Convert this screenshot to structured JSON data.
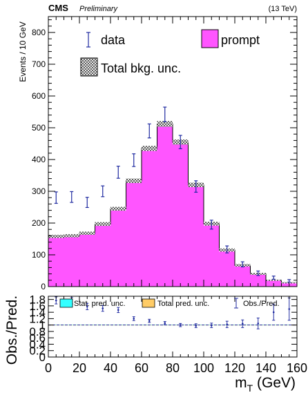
{
  "header": {
    "experiment": "CMS",
    "status": "Preliminary",
    "energy": "(13 TeV)"
  },
  "legend_main": {
    "data": "data",
    "prompt": "prompt",
    "unc": "Total bkg. unc."
  },
  "legend_ratio": {
    "stat": "Stat. pred. unc.",
    "total": "Total pred. unc.",
    "ratio": "Obs./Pred."
  },
  "colors": {
    "prompt_fill": "#ff55ff",
    "data_marker": "#1f2aa0",
    "stat_unc": "#33ffff",
    "total_unc": "#ffcc66",
    "ratio_line": "#1f2aa0"
  },
  "chart_data": [
    {
      "type": "bar",
      "stacked": true,
      "ylabel": "Events / 10 GeV",
      "xlim": [
        0,
        160
      ],
      "ylim": [
        0,
        850
      ],
      "yticks": [
        0,
        100,
        200,
        300,
        400,
        500,
        600,
        700,
        800
      ],
      "bin_edges": [
        0,
        10,
        20,
        30,
        40,
        50,
        60,
        70,
        80,
        90,
        100,
        110,
        120,
        130,
        140,
        150,
        160
      ],
      "series": [
        {
          "name": "prompt",
          "values": [
            158,
            160,
            168,
            197,
            245,
            333,
            435,
            512,
            455,
            320,
            198,
            115,
            67,
            40,
            20,
            12
          ]
        }
      ],
      "bkg_unc": [
        5,
        5,
        5,
        6,
        6,
        7,
        8,
        9,
        8,
        7,
        6,
        5,
        4,
        3,
        2,
        2
      ],
      "data": {
        "name": "data",
        "x": [
          5,
          15,
          25,
          35,
          45,
          55,
          65,
          75,
          85,
          95,
          105,
          115,
          125,
          135,
          145,
          155
        ],
        "y": [
          280,
          282,
          265,
          300,
          360,
          398,
          490,
          542,
          455,
          315,
          195,
          117,
          70,
          42,
          28,
          18
        ],
        "err": [
          18,
          17,
          16,
          17,
          19,
          20,
          22,
          23,
          21,
          18,
          14,
          11,
          8,
          7,
          5,
          4
        ]
      }
    },
    {
      "type": "scatter",
      "ylabel": "Obs./Pred.",
      "xlabel": "m_T (GeV)",
      "xlim": [
        0,
        160
      ],
      "ylim": [
        0,
        1.9
      ],
      "yticks": [
        "0",
        "0.2",
        "0.4",
        "0.6",
        "0.8",
        "1",
        "1.2",
        "1.4",
        "1.6",
        "1.8"
      ],
      "xticks": [
        "0",
        "20",
        "40",
        "60",
        "80",
        "100",
        "120",
        "140",
        "160"
      ],
      "reference": 1.0,
      "ratio": {
        "name": "Obs./Pred.",
        "x": [
          5,
          15,
          25,
          35,
          45,
          55,
          65,
          75,
          85,
          95,
          105,
          115,
          125,
          135,
          145,
          155
        ],
        "y": [
          1.77,
          1.76,
          1.58,
          1.52,
          1.47,
          1.2,
          1.13,
          1.06,
          1.0,
          0.98,
          0.99,
          1.02,
          1.04,
          1.05,
          1.4,
          1.5
        ],
        "err": [
          0.11,
          0.1,
          0.1,
          0.09,
          0.08,
          0.06,
          0.05,
          0.05,
          0.05,
          0.06,
          0.07,
          0.1,
          0.12,
          0.17,
          0.25,
          0.35
        ]
      }
    }
  ]
}
